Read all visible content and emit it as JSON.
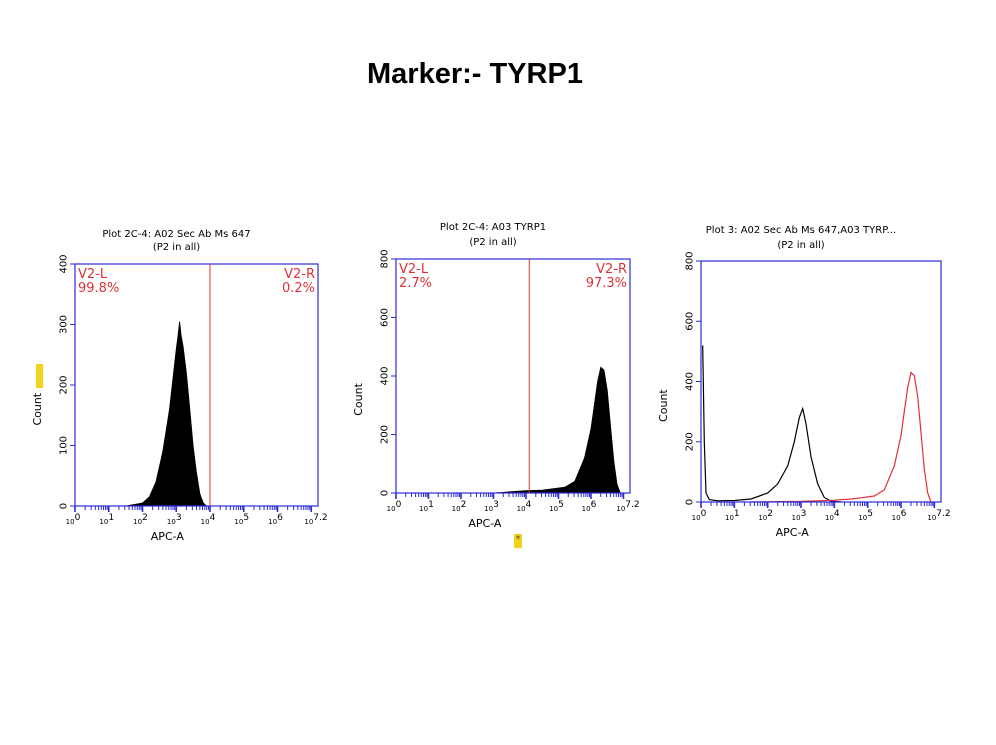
{
  "page": {
    "title": "Marker:- TYRP1"
  },
  "colors": {
    "axis": "#2b2bd6",
    "gate": "#e0303a",
    "fill": "#000000",
    "overlay_sample": "#e0303a",
    "highlight": "#f2d21a"
  },
  "chart_data": [
    {
      "type": "area",
      "title": "Plot 2C-4: A02 Sec Ab Ms 647",
      "subtitle": "(P2 in all)",
      "xlabel": "APC-A",
      "ylabel": "Count",
      "x_scale": "log10",
      "xlim": [
        0,
        7.2
      ],
      "ylim": [
        0,
        400
      ],
      "y_ticks": [
        "0",
        "100",
        "200",
        "300",
        "400"
      ],
      "x_tick_labels": [
        "10^0",
        "10^1",
        "10^2",
        "10^3",
        "10^4",
        "10^5",
        "10^6",
        "10^7.2"
      ],
      "gates": [
        {
          "name": "V2-L",
          "percent": "99.8%",
          "side": "left"
        },
        {
          "name": "V2-R",
          "percent": "0.2%",
          "side": "right"
        }
      ],
      "gate_divider_x": 4.0,
      "grid": false,
      "series": [
        {
          "style": "filled",
          "color": "#000000",
          "x": [
            1.5,
            2.0,
            2.2,
            2.4,
            2.6,
            2.8,
            2.9,
            3.0,
            3.05,
            3.1,
            3.15,
            3.2,
            3.3,
            3.4,
            3.5,
            3.6,
            3.7,
            3.8,
            3.9
          ],
          "y": [
            0,
            5,
            15,
            40,
            90,
            160,
            210,
            260,
            280,
            305,
            280,
            265,
            220,
            160,
            100,
            55,
            20,
            5,
            0
          ]
        }
      ]
    },
    {
      "type": "area",
      "title": "Plot 2C-4: A03 TYRP1",
      "subtitle": "(P2 in all)",
      "xlabel": "APC-A",
      "ylabel": "Count",
      "x_scale": "log10",
      "xlim": [
        0,
        7.2
      ],
      "ylim": [
        0,
        800
      ],
      "y_ticks": [
        "0",
        "200",
        "400",
        "600",
        "800"
      ],
      "x_tick_labels": [
        "10^0",
        "10^1",
        "10^2",
        "10^3",
        "10^4",
        "10^5",
        "10^6",
        "10^7.2"
      ],
      "gates": [
        {
          "name": "V2-L",
          "percent": "2.7%",
          "side": "left"
        },
        {
          "name": "V2-R",
          "percent": "97.3%",
          "side": "right"
        }
      ],
      "gate_divider_x": 4.1,
      "grid": false,
      "series": [
        {
          "style": "filled",
          "color": "#000000",
          "x": [
            3.0,
            3.5,
            4.0,
            4.5,
            4.8,
            5.2,
            5.5,
            5.8,
            6.0,
            6.1,
            6.2,
            6.3,
            6.4,
            6.5,
            6.6,
            6.7,
            6.8,
            6.9
          ],
          "y": [
            0,
            4,
            8,
            10,
            14,
            20,
            40,
            120,
            220,
            300,
            380,
            430,
            420,
            350,
            230,
            110,
            30,
            0
          ]
        }
      ]
    },
    {
      "type": "line",
      "title": "Plot 3: A02 Sec Ab Ms 647,A03 TYRP...",
      "subtitle": "(P2 in all)",
      "xlabel": "APC-A",
      "ylabel": "Count",
      "x_scale": "log10",
      "xlim": [
        0,
        7.2
      ],
      "ylim": [
        0,
        800
      ],
      "y_ticks": [
        "0",
        "200",
        "400",
        "600",
        "800"
      ],
      "x_tick_labels": [
        "10^0",
        "10^1",
        "10^2",
        "10^3",
        "10^4",
        "10^5",
        "10^6",
        "10^7.2"
      ],
      "grid": false,
      "series": [
        {
          "color": "#000000",
          "x": [
            0.05,
            0.1,
            0.15,
            0.25,
            0.5,
            1.0,
            1.5,
            2.0,
            2.3,
            2.6,
            2.8,
            2.95,
            3.05,
            3.15,
            3.3,
            3.5,
            3.7,
            3.9,
            4.2
          ],
          "y": [
            520,
            200,
            30,
            8,
            4,
            5,
            10,
            30,
            60,
            120,
            200,
            280,
            310,
            260,
            150,
            60,
            15,
            3,
            0
          ]
        },
        {
          "color": "#e0303a",
          "x": [
            1.5,
            3.0,
            4.0,
            4.5,
            4.8,
            5.2,
            5.5,
            5.8,
            6.0,
            6.1,
            6.2,
            6.3,
            6.4,
            6.5,
            6.6,
            6.7,
            6.8,
            6.9
          ],
          "y": [
            0,
            2,
            6,
            10,
            14,
            20,
            40,
            120,
            220,
            300,
            380,
            430,
            420,
            350,
            230,
            110,
            30,
            0
          ]
        }
      ]
    }
  ]
}
